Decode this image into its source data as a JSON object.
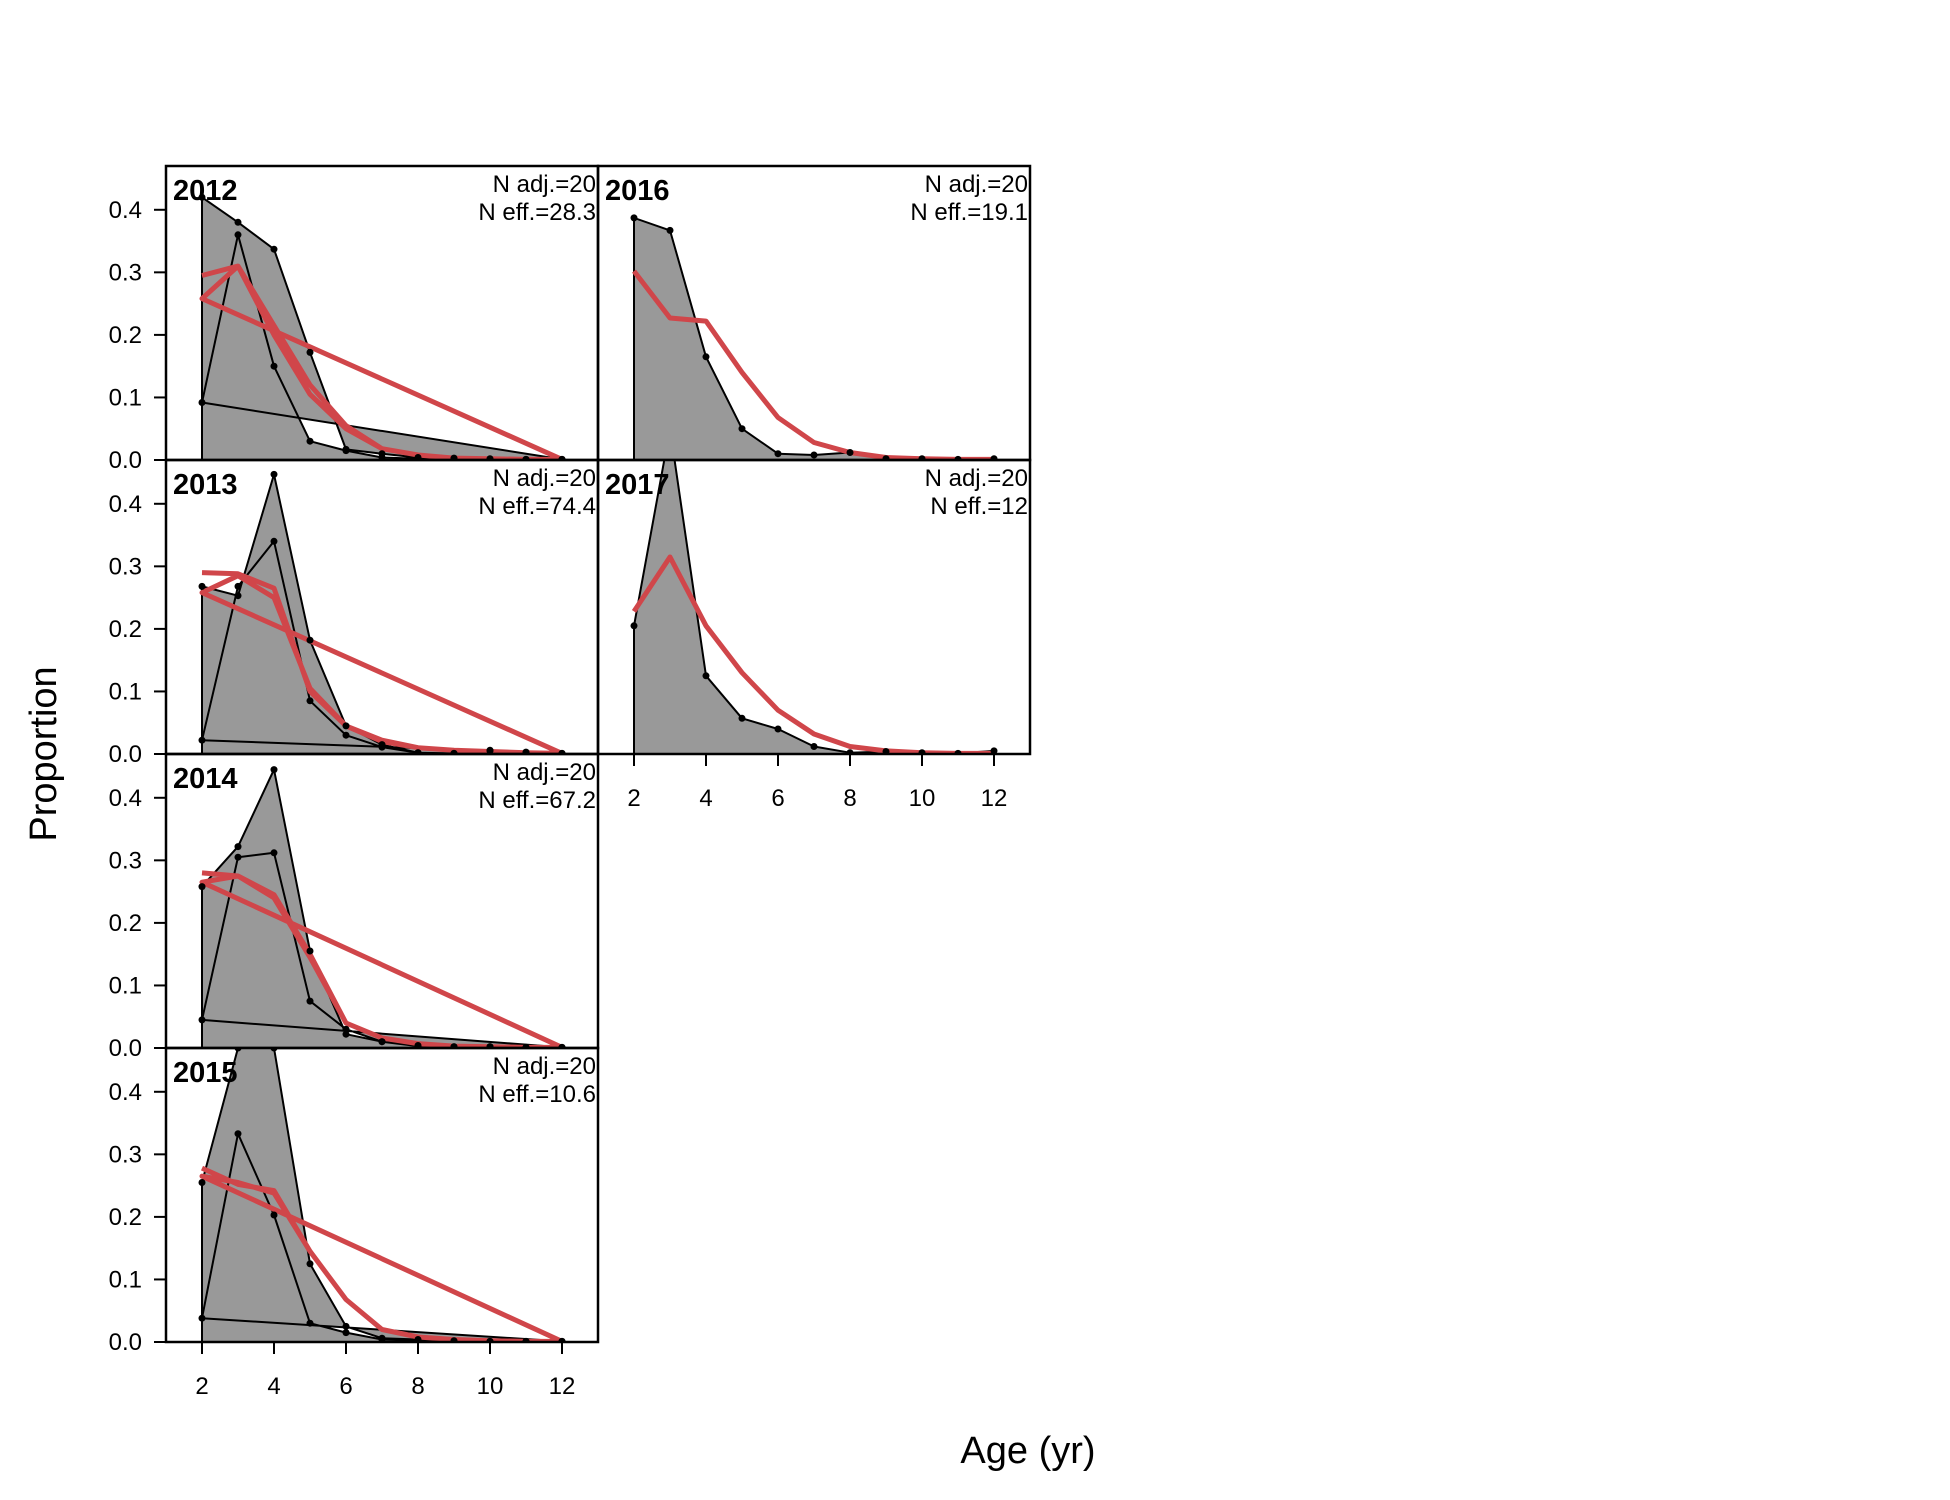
{
  "chart_data": {
    "type": "area",
    "ylabel": "Proportion",
    "xlabel": "Age (yr)",
    "xlim": [
      1,
      13
    ],
    "ylim": [
      0,
      0.47
    ],
    "x_ticks": [
      "2",
      "4",
      "6",
      "8",
      "10",
      "12"
    ],
    "y_ticks": [
      "0.0",
      "0.1",
      "0.2",
      "0.3",
      "0.4"
    ],
    "colors": {
      "observed_fill": "#999999",
      "observed_line": "#000000",
      "expected_line": "#d0464a",
      "zero_line": "#bbbbbb"
    },
    "panels": [
      {
        "year": "2012",
        "n_adj": "N adj.=20",
        "n_eff": "N eff.=28.3",
        "ages": [
          2,
          3,
          4,
          5,
          6,
          7,
          8,
          9,
          10,
          11,
          12,
          2,
          3,
          4,
          5,
          6,
          7,
          8,
          9,
          10,
          11,
          12
        ],
        "observed": [
          0.42,
          0.38,
          0.337,
          0.172,
          0.017,
          0.01,
          0.004,
          0.003,
          0.002,
          0.001,
          0.001,
          0.092,
          0.36,
          0.15,
          0.03,
          0.015,
          0.004,
          0.002,
          0.001,
          0.001,
          0.001,
          0.001
        ],
        "expected": [
          0.295,
          0.31,
          0.215,
          0.12,
          0.055,
          0.018,
          0.008,
          0.003,
          0.002,
          0.001,
          0.001,
          0.258,
          0.31,
          0.2,
          0.105,
          0.05,
          0.018,
          0.008,
          0.003,
          0.002,
          0.001,
          0.001
        ]
      },
      {
        "year": "2013",
        "n_adj": "N adj.=20",
        "n_eff": "N eff.=74.4",
        "ages": [
          2,
          3,
          4,
          5,
          6,
          7,
          8,
          9,
          10,
          11,
          12,
          2,
          3,
          4,
          5,
          6,
          7,
          8,
          9,
          10,
          11,
          12
        ],
        "observed": [
          0.268,
          0.253,
          0.447,
          0.182,
          0.045,
          0.015,
          0.002,
          0.001,
          0.006,
          0.003,
          0.001,
          0.022,
          0.268,
          0.34,
          0.085,
          0.03,
          0.011,
          0.002,
          0.001,
          0.005,
          0.002,
          0.001
        ],
        "expected": [
          0.29,
          0.288,
          0.265,
          0.1,
          0.045,
          0.022,
          0.01,
          0.006,
          0.004,
          0.002,
          0.001,
          0.258,
          0.285,
          0.25,
          0.105,
          0.045,
          0.02,
          0.01,
          0.006,
          0.004,
          0.002,
          0.001
        ]
      },
      {
        "year": "2014",
        "n_adj": "N adj.=20",
        "n_eff": "N eff.=67.2",
        "ages": [
          2,
          3,
          4,
          5,
          6,
          7,
          8,
          9,
          10,
          11,
          12,
          2,
          3,
          4,
          5,
          6,
          7,
          8,
          9,
          10,
          11,
          12
        ],
        "observed": [
          0.258,
          0.322,
          0.445,
          0.155,
          0.022,
          0.01,
          0.004,
          0.002,
          0.002,
          0.001,
          0.001,
          0.045,
          0.305,
          0.312,
          0.075,
          0.03,
          0.01,
          0.003,
          0.002,
          0.002,
          0.001,
          0.001
        ],
        "expected": [
          0.28,
          0.275,
          0.245,
          0.15,
          0.04,
          0.016,
          0.007,
          0.003,
          0.002,
          0.001,
          0.001,
          0.265,
          0.275,
          0.24,
          0.145,
          0.04,
          0.016,
          0.007,
          0.003,
          0.002,
          0.001,
          0.001
        ]
      },
      {
        "year": "2015",
        "n_adj": "N adj.=20",
        "n_eff": "N eff.=10.6",
        "ages": [
          2,
          3,
          4,
          5,
          6,
          7,
          8,
          9,
          10,
          11,
          12,
          2,
          3,
          4,
          5,
          6,
          7,
          8,
          9,
          10,
          11,
          12
        ],
        "observed": [
          0.255,
          0.47,
          0.47,
          0.125,
          0.025,
          0.006,
          0.004,
          0.002,
          0.001,
          0.001,
          0.001,
          0.038,
          0.333,
          0.203,
          0.03,
          0.015,
          0.004,
          0.002,
          0.001,
          0.001,
          0.001,
          0.001
        ],
        "expected": [
          0.278,
          0.252,
          0.242,
          0.145,
          0.068,
          0.02,
          0.008,
          0.004,
          0.002,
          0.001,
          0.001,
          0.265,
          0.255,
          0.238,
          0.145,
          0.068,
          0.02,
          0.008,
          0.004,
          0.002,
          0.001,
          0.001
        ]
      },
      {
        "year": "2016",
        "n_adj": "N adj.=20",
        "n_eff": "N eff.=19.1",
        "ages": [
          2,
          3,
          4,
          5,
          6,
          7,
          8,
          9,
          10,
          11,
          12
        ],
        "observed": [
          0.387,
          0.367,
          0.165,
          0.05,
          0.01,
          0.008,
          0.012,
          0.002,
          0.002,
          0.001,
          0.002
        ],
        "expected": [
          0.302,
          0.227,
          0.222,
          0.14,
          0.068,
          0.028,
          0.012,
          0.004,
          0.002,
          0.001,
          0.001
        ]
      },
      {
        "year": "2017",
        "n_adj": "N adj.=20",
        "n_eff": "N eff.=12",
        "ages": [
          2,
          3,
          4,
          5,
          6,
          7,
          8,
          9,
          10,
          11,
          12
        ],
        "observed": [
          0.205,
          0.52,
          0.125,
          0.057,
          0.04,
          0.012,
          0.002,
          0.004,
          0.002,
          0.001,
          0.005
        ],
        "expected": [
          0.228,
          0.315,
          0.205,
          0.13,
          0.07,
          0.032,
          0.012,
          0.005,
          0.002,
          0.001,
          0.001
        ]
      }
    ]
  }
}
